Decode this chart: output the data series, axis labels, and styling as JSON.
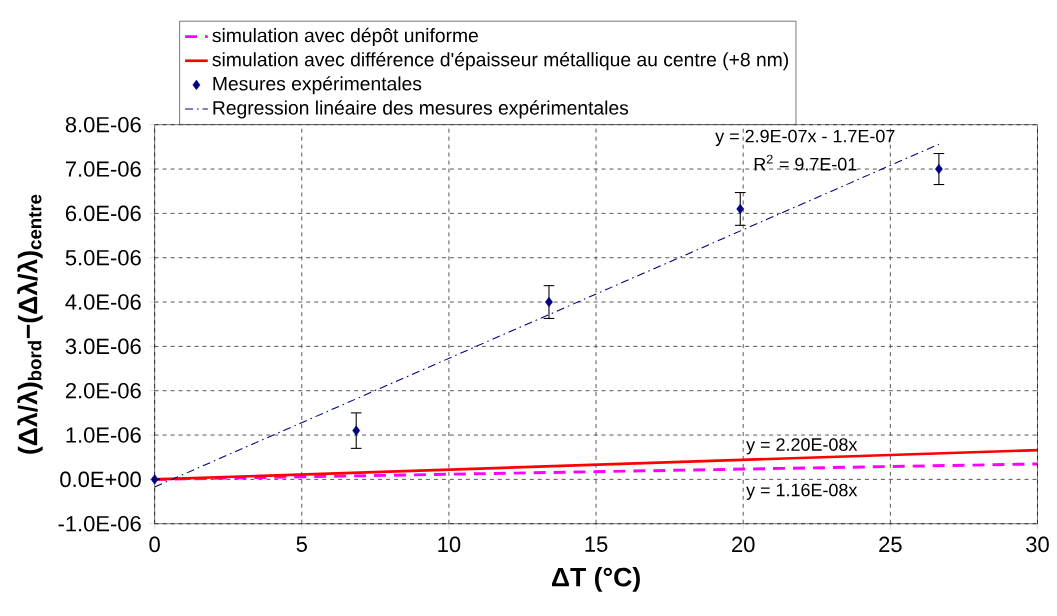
{
  "chart_data": {
    "type": "line",
    "xlabel": "ΔT (°C)",
    "ylabel": "(Δλ/λ)$_{bord}$−(Δλ/λ)$_{centre}$",
    "xlim": [
      0,
      30
    ],
    "xticks": [
      0,
      5,
      10,
      15,
      20,
      25,
      30
    ],
    "ylim": [
      -1e-06,
      8e-06
    ],
    "yticks": [
      {
        "value": -1e-06,
        "label": "-1.0E-06"
      },
      {
        "value": 0,
        "label": "0.0E+00"
      },
      {
        "value": 1e-06,
        "label": "1.0E-06"
      },
      {
        "value": 2e-06,
        "label": "2.0E-06"
      },
      {
        "value": 3e-06,
        "label": "3.0E-06"
      },
      {
        "value": 4e-06,
        "label": "4.0E-06"
      },
      {
        "value": 5e-06,
        "label": "5.0E-06"
      },
      {
        "value": 6e-06,
        "label": "6.0E-06"
      },
      {
        "value": 7e-06,
        "label": "7.0E-06"
      },
      {
        "value": 8e-06,
        "label": "8.0E-06"
      }
    ],
    "grid": true,
    "legend": "top",
    "series": [
      {
        "name": "simulation avec dépôt uniforme",
        "color": "#ff00ff",
        "line_style": "dashed",
        "x": [
          0,
          30
        ],
        "values": [
          0,
          3.48e-07
        ]
      },
      {
        "name": "simulation avec différence d'épaisseur métallique au centre (+8 nm)",
        "color": "#ff0000",
        "line_style": "solid",
        "x": [
          0,
          30
        ],
        "values": [
          0,
          6.6e-07
        ]
      },
      {
        "name": "Mesures expérimentales",
        "type": "scatter",
        "color": "#000080",
        "marker": "diamond",
        "x": [
          0,
          6.85,
          13.4,
          19.9,
          26.65
        ],
        "values": [
          0,
          1.1e-06,
          4e-06,
          6.1e-06,
          7e-06
        ],
        "errors": [
          null,
          4e-07,
          3.7e-07,
          3.7e-07,
          3.5e-07
        ]
      },
      {
        "name": "Regression linéaire des mesures expérimentales",
        "color": "#000080",
        "line_style": "dashdot",
        "x": [
          0,
          26.65
        ],
        "values": [
          -1.7e-07,
          7.56e-06
        ]
      }
    ],
    "annotations": [
      "y = 2.9E-07x - 1.7E-07",
      "R$^{2}$ = 9.7E-01",
      "y = 2.20E-08x",
      "y = 1.16E-08x"
    ]
  }
}
